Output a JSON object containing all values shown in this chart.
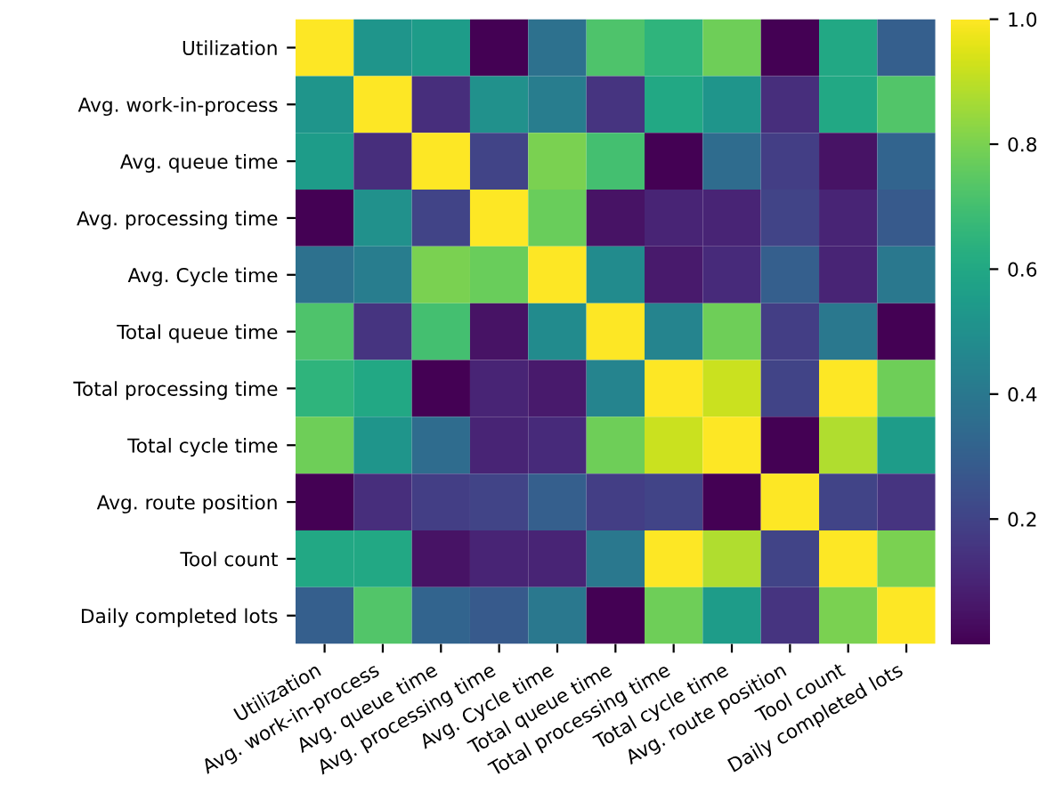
{
  "chart_data": {
    "type": "heatmap",
    "categories": [
      "Utilization",
      "Avg. work-in-process",
      "Avg. queue time",
      "Avg. processing time",
      "Avg. Cycle time",
      "Total queue time",
      "Total processing time",
      "Total cycle time",
      "Avg. route position",
      "Tool count",
      "Daily completed lots"
    ],
    "y_categories": [
      "Utilization",
      "Avg. work-in-process",
      "Avg. queue time",
      "Avg. processing time",
      "Avg. Cycle time",
      "Total queue time",
      "Total processing time",
      "Total cycle time",
      "Avg. route position",
      "Tool count",
      "Daily completed lots"
    ],
    "cells": [
      [
        1,
        0.52,
        0.55,
        0.0,
        0.37,
        0.72,
        0.65,
        0.78,
        0.0,
        0.6,
        0.3
      ],
      [
        0.52,
        1,
        0.13,
        0.5,
        0.42,
        0.15,
        0.6,
        0.52,
        0.13,
        0.6,
        0.73
      ],
      [
        0.55,
        0.13,
        1,
        0.2,
        0.8,
        0.7,
        0.0,
        0.35,
        0.18,
        0.05,
        0.32
      ],
      [
        0.0,
        0.5,
        0.2,
        1,
        0.77,
        0.05,
        0.1,
        0.1,
        0.2,
        0.1,
        0.28
      ],
      [
        0.37,
        0.42,
        0.8,
        0.77,
        1,
        0.48,
        0.07,
        0.12,
        0.3,
        0.1,
        0.4
      ],
      [
        0.72,
        0.15,
        0.7,
        0.05,
        0.48,
        1,
        0.45,
        0.78,
        0.18,
        0.4,
        0.0
      ],
      [
        0.65,
        0.6,
        0.0,
        0.1,
        0.07,
        0.45,
        1,
        0.92,
        0.2,
        1.0,
        0.78
      ],
      [
        0.78,
        0.52,
        0.35,
        0.1,
        0.12,
        0.78,
        0.92,
        1,
        0.0,
        0.88,
        0.55
      ],
      [
        0.0,
        0.13,
        0.18,
        0.2,
        0.3,
        0.18,
        0.2,
        0.0,
        1,
        0.2,
        0.15
      ],
      [
        0.6,
        0.6,
        0.05,
        0.1,
        0.1,
        0.4,
        1.0,
        0.88,
        0.2,
        1,
        0.8
      ],
      [
        0.3,
        0.73,
        0.32,
        0.28,
        0.4,
        0.0,
        0.78,
        0.55,
        0.15,
        0.8,
        1
      ]
    ],
    "clim": [
      0.0,
      1.0
    ],
    "cticks": [
      0.2,
      0.4,
      0.6,
      0.8,
      {
        "value": 1,
        "label": "1.0"
      }
    ]
  }
}
